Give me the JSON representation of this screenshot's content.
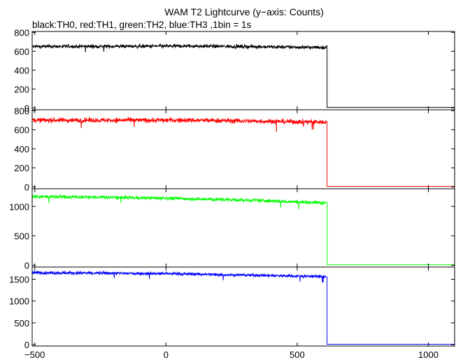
{
  "chart_data": {
    "type": "line",
    "title": "WAM T2 Lightcurve (y−axis: Counts)",
    "subtitle": "black:TH0, red:TH1, green:TH2, blue:TH3 ,1bin = 1s",
    "xlabel": "",
    "ylabel": "",
    "xlim": [
      -510,
      1100
    ],
    "x_ticks": [
      -500,
      0,
      500,
      1000
    ],
    "x_tick_labels": [
      "−500",
      "0",
      "500",
      "1000"
    ],
    "grid": false,
    "legend": "none",
    "binsize_s": 1,
    "panels": [
      {
        "name": "TH0",
        "color": "#000000",
        "ylim": [
          -20,
          810
        ],
        "yticks": [
          0,
          200,
          400,
          600,
          800
        ],
        "segments": [
          {
            "x": [
              -510,
              100,
              350,
              610
            ],
            "y": [
              650,
              655,
              648,
              640
            ],
            "noise": 18
          },
          {
            "x": [
              618,
              1100
            ],
            "y": [
              5,
              5
            ],
            "noise": 0
          }
        ]
      },
      {
        "name": "TH1",
        "color": "#ff0000",
        "ylim": [
          -20,
          810
        ],
        "yticks": [
          0,
          200,
          400,
          600,
          800
        ],
        "segments": [
          {
            "x": [
              -510,
              100,
              350,
              610
            ],
            "y": [
              700,
              700,
              690,
              680
            ],
            "noise": 25
          },
          {
            "x": [
              618,
              1100
            ],
            "y": [
              5,
              5
            ],
            "noise": 0
          }
        ]
      },
      {
        "name": "TH2",
        "color": "#00ff00",
        "ylim": [
          -30,
          1300
        ],
        "yticks": [
          0,
          500,
          1000
        ],
        "segments": [
          {
            "x": [
              -510,
              0,
              350,
              610
            ],
            "y": [
              1170,
              1140,
              1100,
              1060
            ],
            "noise": 30
          },
          {
            "x": [
              618,
              1100
            ],
            "y": [
              10,
              10
            ],
            "noise": 0
          }
        ]
      },
      {
        "name": "TH3",
        "color": "#0000ff",
        "ylim": [
          -30,
          1780
        ],
        "yticks": [
          0,
          500,
          1000,
          1500
        ],
        "segments": [
          {
            "x": [
              -510,
              0,
              350,
              610
            ],
            "y": [
              1650,
              1630,
              1590,
              1560
            ],
            "noise": 35
          },
          {
            "x": [
              618,
              1100
            ],
            "y": [
              10,
              10
            ],
            "noise": 0
          }
        ]
      }
    ]
  }
}
